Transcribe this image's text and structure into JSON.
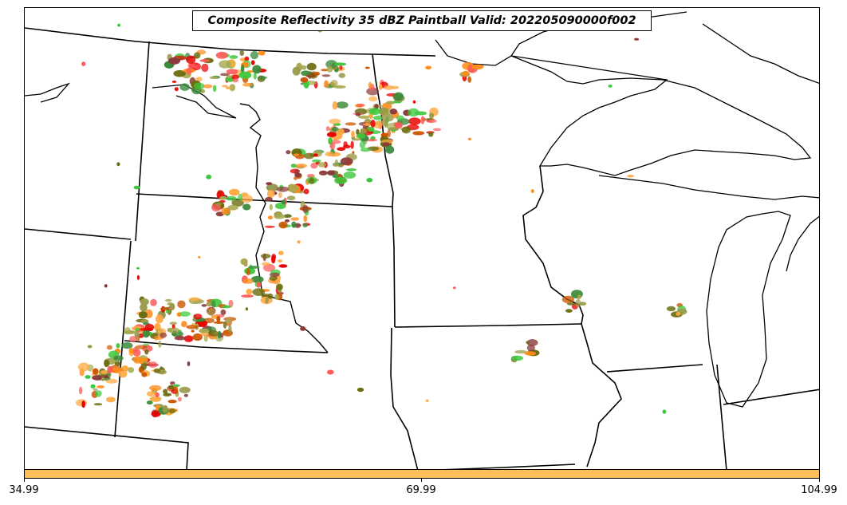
{
  "title": "Composite Reflectivity 35 dBZ Paintball Valid: 202205090000f002",
  "colorbar": {
    "color": "#ffbe5a",
    "ticks": [
      "34.99",
      "69.99",
      "104.99"
    ]
  },
  "paint_colors": [
    "#ff5a5a",
    "#ff8c1a",
    "#ffaa44",
    "#8b3a3a",
    "#e80000",
    "#6b6b10",
    "#a8a850",
    "#3cc83c",
    "#3a8a3a",
    "#9a9a4a",
    "#cc5500"
  ],
  "map_features": [
    "coastline",
    "state-borders",
    "lakes"
  ]
}
